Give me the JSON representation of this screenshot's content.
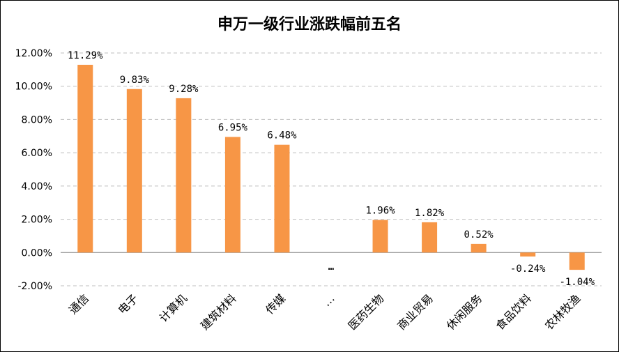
{
  "chart_data": {
    "type": "bar",
    "title": "申万一级行业涨跌幅前五名",
    "xlabel": "",
    "ylabel": "",
    "categories": [
      "通信",
      "电子",
      "计算机",
      "建筑材料",
      "传媒",
      "…",
      "医药生物",
      "商业贸易",
      "休闲服务",
      "食品饮料",
      "农林牧渔"
    ],
    "values": [
      11.29,
      9.83,
      9.28,
      6.95,
      6.48,
      null,
      1.96,
      1.82,
      0.52,
      -0.24,
      -1.04
    ],
    "data_labels": [
      "11.29%",
      "9.83%",
      "9.28%",
      "6.95%",
      "6.48%",
      "…",
      "1.96%",
      "1.82%",
      "0.52%",
      "-0.24%",
      "-1.04%"
    ],
    "y_ticks": [
      -2,
      0,
      2,
      4,
      6,
      8,
      10,
      12
    ],
    "y_tick_labels": [
      "-2.00%",
      "0.00%",
      "2.00%",
      "4.00%",
      "6.00%",
      "8.00%",
      "10.00%",
      "12.00%"
    ],
    "ylim": [
      -2,
      12
    ],
    "grid": "horizontal-dashed",
    "legend": "none",
    "bar_color": "#F79646",
    "grid_color": "#BFBFBF",
    "axis_color": "#808080"
  }
}
